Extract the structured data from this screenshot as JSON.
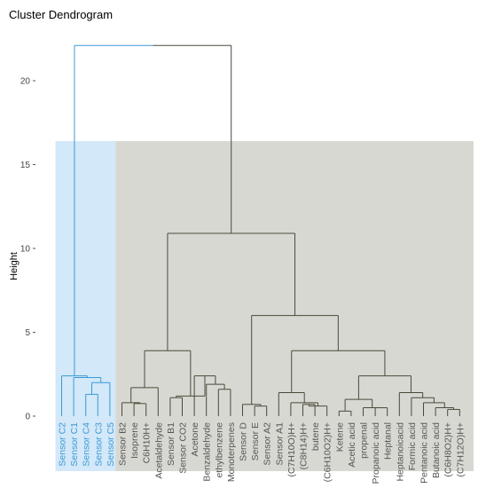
{
  "chart_data": {
    "type": "dendrogram",
    "title": "Cluster Dendrogram",
    "ylabel": "Height",
    "yticks": [
      0,
      5,
      10,
      15,
      20
    ],
    "ylim": [
      0,
      23
    ],
    "colors": {
      "cluster_1": "#3b9ad6",
      "cluster_2": "#4a4a3a",
      "band_1": "#d3e8f8",
      "band_2": "#d8d8d2"
    },
    "leaves": [
      {
        "label": "Sensor C2",
        "cluster": 1
      },
      {
        "label": "Sensor C1",
        "cluster": 1
      },
      {
        "label": "Sensor C4",
        "cluster": 1
      },
      {
        "label": "Sensor C3",
        "cluster": 1
      },
      {
        "label": "Sensor C5",
        "cluster": 1
      },
      {
        "label": "Sensor B2",
        "cluster": 2
      },
      {
        "label": "Isoprene",
        "cluster": 2
      },
      {
        "label": "C6H10H+",
        "cluster": 2
      },
      {
        "label": "Acetaldehyde",
        "cluster": 2
      },
      {
        "label": "Sensor B1",
        "cluster": 2
      },
      {
        "label": "Sensor CO2",
        "cluster": 2
      },
      {
        "label": "Acetone",
        "cluster": 2
      },
      {
        "label": "Benzaldehyde",
        "cluster": 2
      },
      {
        "label": "ethylbenzene",
        "cluster": 2
      },
      {
        "label": "Monoterpenes",
        "cluster": 2
      },
      {
        "label": "Sensor D",
        "cluster": 2
      },
      {
        "label": "Sensor E",
        "cluster": 2
      },
      {
        "label": "Sensor A2",
        "cluster": 2
      },
      {
        "label": "Sensor A1",
        "cluster": 2
      },
      {
        "label": "(C7H10O)H+",
        "cluster": 2
      },
      {
        "label": "(C8H14)H+",
        "cluster": 2
      },
      {
        "label": "butene",
        "cluster": 2
      },
      {
        "label": "(C6H10O2)H+",
        "cluster": 2
      },
      {
        "label": "Ketene",
        "cluster": 2
      },
      {
        "label": "Acetic acid",
        "cluster": 2
      },
      {
        "label": "propenal",
        "cluster": 2
      },
      {
        "label": "Propanoic acid",
        "cluster": 2
      },
      {
        "label": "Heptanal",
        "cluster": 2
      },
      {
        "label": "Heptanoicacid",
        "cluster": 2
      },
      {
        "label": "Formic acid",
        "cluster": 2
      },
      {
        "label": "Pentanoic acid",
        "cluster": 2
      },
      {
        "label": "Butanoic acid",
        "cluster": 2
      },
      {
        "label": "(C6H8O2)H+",
        "cluster": 2
      },
      {
        "label": "(C7H12O)H+",
        "cluster": 2
      }
    ],
    "merges": [
      {
        "a": "Sensor C4",
        "b": "Sensor C3",
        "h": 1.3
      },
      {
        "a": "m0",
        "b": "Sensor C5",
        "h": 2.0
      },
      {
        "a": "Sensor C1",
        "b": "m1",
        "h": 2.3
      },
      {
        "a": "Sensor C2",
        "b": "m2",
        "h": 2.4
      },
      {
        "a": "Isoprene",
        "b": "C6H10H+",
        "h": 0.75
      },
      {
        "a": "Sensor B2",
        "b": "m4",
        "h": 0.8
      },
      {
        "a": "m5",
        "b": "Acetaldehyde",
        "h": 1.7
      },
      {
        "a": "Sensor B1",
        "b": "Sensor CO2",
        "h": 1.1
      },
      {
        "a": "ethylbenzene",
        "b": "Monoterpenes",
        "h": 1.6
      },
      {
        "a": "Benzaldehyde",
        "b": "m8",
        "h": 1.9
      },
      {
        "a": "Acetone",
        "b": "m9",
        "h": 2.4
      },
      {
        "a": "m7",
        "b": "m10",
        "h": 1.2
      },
      {
        "a": "m6",
        "b": "m11",
        "h": 3.9
      },
      {
        "a": "Sensor E",
        "b": "Sensor A2",
        "h": 0.6
      },
      {
        "a": "m13",
        "b": "Sensor D",
        "h": 0.7
      },
      {
        "a": "(C8H14)H+",
        "b": "butene",
        "h": 0.7
      },
      {
        "a": "m15",
        "b": "(C6H10O2)H+",
        "h": 0.6
      },
      {
        "a": "(C7H10O)H+",
        "b": "m16",
        "h": 0.8
      },
      {
        "a": "Sensor A1",
        "b": "m17",
        "h": 1.4
      },
      {
        "a": "Ketene",
        "b": "Acetic acid",
        "h": 0.3
      },
      {
        "a": "Propanoic acid",
        "b": "Heptanal",
        "h": 0.5
      },
      {
        "a": "propenal",
        "b": "m20",
        "h": 0.5
      },
      {
        "a": "m19",
        "b": "m21",
        "h": 1.0
      },
      {
        "a": "(C6H8O2)H+",
        "b": "(C7H12O)H+",
        "h": 0.4
      },
      {
        "a": "Butanoic acid",
        "b": "m23",
        "h": 0.5
      },
      {
        "a": "Pentanoic acid",
        "b": "m24",
        "h": 0.8
      },
      {
        "a": "Formic acid",
        "b": "m25",
        "h": 1.1
      },
      {
        "a": "Heptanoicacid",
        "b": "m26",
        "h": 1.4
      },
      {
        "a": "m22",
        "b": "m27",
        "h": 2.4
      },
      {
        "a": "m18",
        "b": "m28",
        "h": 3.9
      },
      {
        "a": "m14",
        "b": "m29",
        "h": 6.0
      },
      {
        "a": "m12",
        "b": "m30",
        "h": 10.9
      },
      {
        "a": "m3",
        "b": "m31",
        "h": 22.1
      }
    ]
  }
}
